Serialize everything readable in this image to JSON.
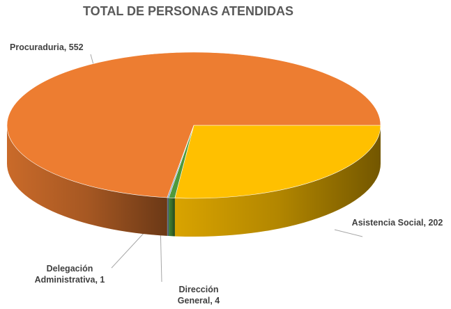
{
  "chart_data": {
    "type": "pie",
    "title": "TOTAL DE PERSONAS ATENDIDAS",
    "categories": [
      "Asistencia Social,",
      "Dirección General,",
      "Delegación Administrativa,",
      "Procuraduria,"
    ],
    "values": [
      202,
      4,
      1,
      552
    ],
    "colors": [
      "#ffc000",
      "#4f9a3c",
      "#7f9fc0",
      "#ed7d31"
    ]
  }
}
